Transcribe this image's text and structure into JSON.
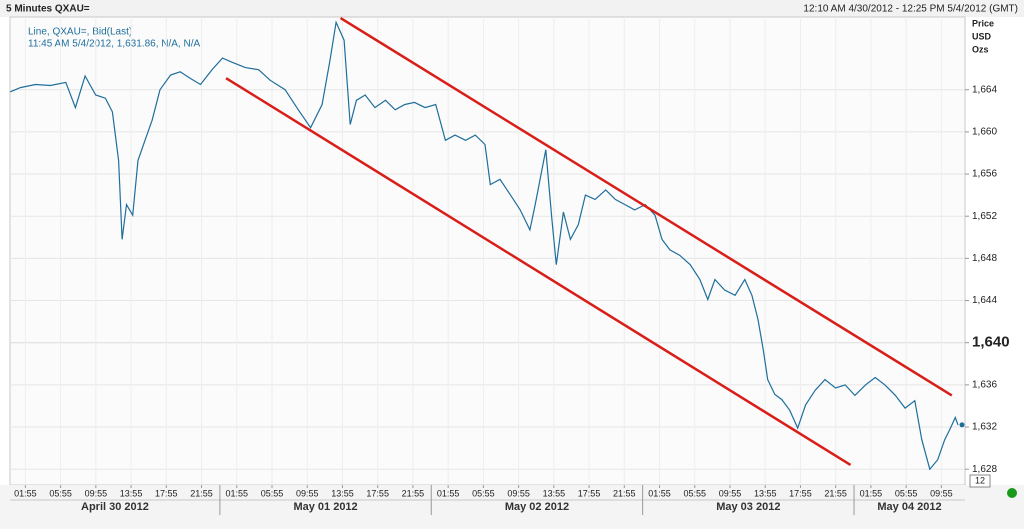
{
  "chart_data": {
    "type": "line",
    "title": "5 Minutes QXAU=",
    "date_range": "12:10 AM 4/30/2012 - 12:25 PM 5/4/2012 (GMT)",
    "legend_detail": "11:45 AM 5/4/2012, 1,631.86, N/A, N/A",
    "y_axis_label": [
      "Price",
      "USD",
      "Ozs"
    ],
    "zoom_label": "12",
    "xlim": [
      0.17,
      108.6
    ],
    "ylim": [
      1626.5,
      1670.9
    ],
    "grid": true,
    "yticks": [
      {
        "value": 1628,
        "label": "1,628"
      },
      {
        "value": 1632,
        "label": "1,632"
      },
      {
        "value": 1636,
        "label": "1,636"
      },
      {
        "value": 1644,
        "label": "1,644"
      },
      {
        "value": 1648,
        "label": "1,648"
      },
      {
        "value": 1652,
        "label": "1,652"
      },
      {
        "value": 1656,
        "label": "1,656"
      },
      {
        "value": 1660,
        "label": "1,660"
      },
      {
        "value": 1664,
        "label": "1,664"
      }
    ],
    "major_ytick": {
      "value": 1640,
      "label": "1,640"
    },
    "xticks": [
      {
        "value": 1.917,
        "label": "01:55"
      },
      {
        "value": 5.917,
        "label": "05:55"
      },
      {
        "value": 9.917,
        "label": "09:55"
      },
      {
        "value": 13.917,
        "label": "13:55"
      },
      {
        "value": 17.917,
        "label": "17:55"
      },
      {
        "value": 21.917,
        "label": "21:55"
      },
      {
        "value": 25.917,
        "label": "01:55"
      },
      {
        "value": 29.917,
        "label": "05:55"
      },
      {
        "value": 33.917,
        "label": "09:55"
      },
      {
        "value": 37.917,
        "label": "13:55"
      },
      {
        "value": 41.917,
        "label": "17:55"
      },
      {
        "value": 45.917,
        "label": "21:55"
      },
      {
        "value": 49.917,
        "label": "01:55"
      },
      {
        "value": 53.917,
        "label": "05:55"
      },
      {
        "value": 57.917,
        "label": "09:55"
      },
      {
        "value": 61.917,
        "label": "13:55"
      },
      {
        "value": 65.917,
        "label": "17:55"
      },
      {
        "value": 69.917,
        "label": "21:55"
      },
      {
        "value": 73.917,
        "label": "01:55"
      },
      {
        "value": 77.917,
        "label": "05:55"
      },
      {
        "value": 81.917,
        "label": "09:55"
      },
      {
        "value": 85.917,
        "label": "13:55"
      },
      {
        "value": 89.917,
        "label": "17:55"
      },
      {
        "value": 93.917,
        "label": "21:55"
      },
      {
        "value": 97.917,
        "label": "01:55"
      },
      {
        "value": 101.917,
        "label": "05:55"
      },
      {
        "value": 105.917,
        "label": "09:55"
      }
    ],
    "days": [
      {
        "start": 0,
        "end": 24,
        "label": "April 30 2012"
      },
      {
        "start": 24,
        "end": 48,
        "label": "May 01 2012"
      },
      {
        "start": 48,
        "end": 72,
        "label": "May 02 2012"
      },
      {
        "start": 72,
        "end": 96,
        "label": "May 03 2012"
      },
      {
        "start": 96,
        "end": 120,
        "label": "May 04 2012"
      }
    ],
    "x": [
      0.2,
      1.35,
      3.05,
      4.76,
      6.5,
      7.6,
      8.7,
      9.9,
      11.0,
      11.8,
      12.5,
      12.9,
      13.4,
      14.1,
      14.7,
      15.5,
      16.3,
      17.2,
      18.4,
      19.5,
      20.6,
      21.8,
      23.1,
      24.3,
      25.4,
      26.9,
      28.4,
      29.7,
      31.4,
      32.9,
      34.3,
      35.6,
      36.5,
      37.2,
      38.1,
      38.8,
      39.5,
      40.5,
      41.6,
      42.8,
      43.9,
      45.0,
      46.1,
      47.3,
      48.5,
      49.6,
      50.7,
      51.9,
      53.0,
      54.1,
      54.7,
      55.8,
      57.0,
      58.1,
      59.2,
      59.8,
      61.0,
      61.7,
      62.2,
      63.0,
      63.8,
      64.7,
      65.5,
      66.6,
      67.8,
      68.9,
      70.0,
      71.1,
      72.3,
      73.4,
      74.2,
      75.1,
      76.2,
      77.4,
      78.5,
      79.4,
      80.2,
      81.3,
      82.5,
      83.6,
      84.4,
      85.1,
      85.7,
      86.2,
      87.0,
      87.8,
      88.7,
      89.6,
      90.5,
      91.6,
      92.7,
      93.9,
      95.0,
      96.1,
      97.3,
      98.4,
      99.5,
      100.7,
      101.8,
      102.9,
      103.7,
      104.6,
      105.5,
      106.3,
      106.9,
      107.5,
      107.8
    ],
    "series": [
      {
        "name": "Line, QXAU=, Bid(Last)",
        "color": "#1f6e9c",
        "values": [
          1663.8,
          1664.2,
          1664.5,
          1664.4,
          1664.7,
          1662.3,
          1665.3,
          1663.5,
          1663.2,
          1661.9,
          1657.3,
          1649.8,
          1653.1,
          1652.1,
          1657.3,
          1659.2,
          1661.1,
          1664.0,
          1665.4,
          1665.7,
          1665.1,
          1664.5,
          1665.9,
          1667.0,
          1666.6,
          1666.1,
          1665.9,
          1664.9,
          1664.0,
          1662.1,
          1660.4,
          1662.6,
          1666.8,
          1670.4,
          1668.7,
          1660.7,
          1663.0,
          1663.5,
          1662.3,
          1663.0,
          1662.1,
          1662.6,
          1662.8,
          1662.3,
          1662.6,
          1659.2,
          1659.7,
          1659.2,
          1659.7,
          1658.8,
          1655.0,
          1655.5,
          1654.0,
          1652.6,
          1650.7,
          1653.1,
          1658.3,
          1651.7,
          1647.4,
          1652.4,
          1649.8,
          1651.2,
          1654.0,
          1653.6,
          1654.5,
          1653.6,
          1653.1,
          1652.6,
          1653.1,
          1652.1,
          1649.8,
          1648.8,
          1648.3,
          1647.4,
          1646.0,
          1644.1,
          1646.0,
          1645.0,
          1644.5,
          1646.0,
          1644.5,
          1642.2,
          1639.3,
          1636.5,
          1635.1,
          1634.6,
          1633.6,
          1631.9,
          1634.1,
          1635.5,
          1636.5,
          1635.7,
          1636.0,
          1635.0,
          1636.0,
          1636.7,
          1636.0,
          1635.0,
          1633.8,
          1634.5,
          1630.8,
          1628.0,
          1628.9,
          1630.8,
          1631.8,
          1632.9,
          1632.2
        ]
      }
    ],
    "trend_lines": [
      {
        "color": "#d91e18",
        "x": [
          37.7,
          107.1
        ],
        "y": [
          1670.8,
          1635.0
        ]
      },
      {
        "color": "#d91e18",
        "x": [
          24.7,
          95.6
        ],
        "y": [
          1665.1,
          1628.4
        ]
      }
    ]
  }
}
